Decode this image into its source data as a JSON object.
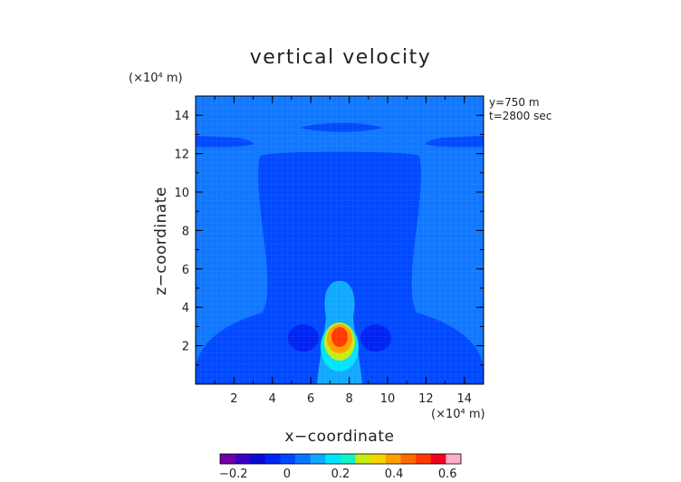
{
  "chart_data": {
    "type": "heatmap",
    "title": "vertical velocity",
    "xlabel": "x−coordinate",
    "ylabel": "z−coordinate",
    "x_unit": "(×10⁴ m)",
    "y_unit": "(×10⁴ m)",
    "annotations": [
      "y=750  m",
      "t=2800  sec"
    ],
    "xlim": [
      0,
      15
    ],
    "ylim": [
      0,
      15
    ],
    "x_ticks": [
      2,
      4,
      6,
      8,
      10,
      12,
      14
    ],
    "y_ticks": [
      2,
      4,
      6,
      8,
      10,
      12,
      14
    ],
    "x_tick_labels": [
      "2",
      "4",
      "6",
      "8",
      "10",
      "12",
      "14"
    ],
    "y_tick_labels": [
      "2",
      "4",
      "6",
      "8",
      "10",
      "12",
      "14"
    ],
    "colorbar": {
      "min": -0.25,
      "max": 0.65,
      "tick_values": [
        -0.2,
        0,
        0.2,
        0.4,
        0.6
      ],
      "tick_labels": [
        "−0.2",
        "0",
        "0.2",
        "0.4",
        "0.6"
      ],
      "colors": [
        "#6f00a6",
        "#3b00c8",
        "#0b0bd6",
        "#0022f2",
        "#0048ff",
        "#0b74ff",
        "#11a8ff",
        "#00e4ff",
        "#14f2c8",
        "#c8ec10",
        "#f5d400",
        "#ff9f00",
        "#ff6a00",
        "#ff3a00",
        "#f2001e",
        "#ffb0c8"
      ]
    },
    "regions": [
      {
        "name": "background",
        "value": 0.03,
        "color": "#1177ff"
      },
      {
        "name": "weak downdraft",
        "value": -0.03,
        "color": "#0049ff"
      },
      {
        "name": "lateral downdraft cores",
        "value": -0.08,
        "color": "#0022f2"
      },
      {
        "name": "updraft outer",
        "value": 0.15,
        "color": "#11a8ff"
      },
      {
        "name": "updraft",
        "value": 0.25,
        "color": "#00e4ff"
      },
      {
        "name": "updraft",
        "value": 0.35,
        "color": "#c8ec10"
      },
      {
        "name": "updraft",
        "value": 0.45,
        "color": "#ff9f00"
      },
      {
        "name": "updraft core",
        "value": 0.55,
        "color": "#ff3a00"
      }
    ]
  }
}
